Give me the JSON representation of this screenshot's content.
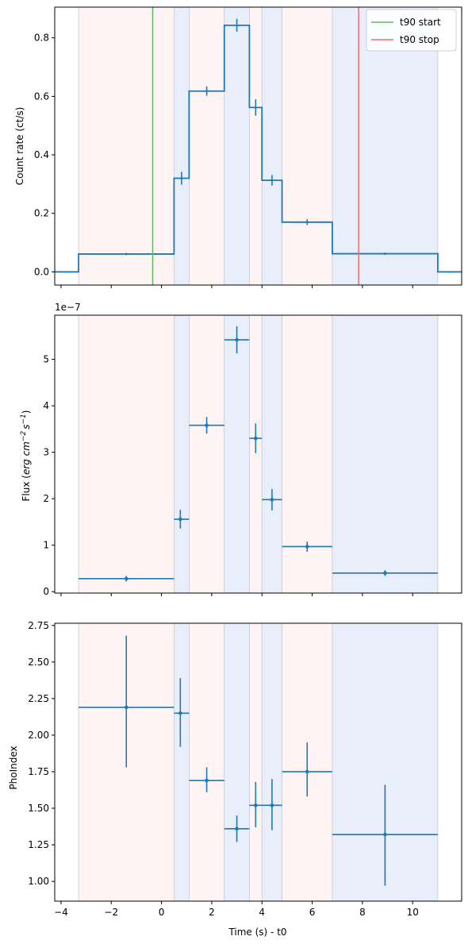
{
  "chart_data": [
    {
      "type": "line",
      "ylabel": "Count rate (ct/s)",
      "xlim": [
        -4.25,
        11.95
      ],
      "ylim": [
        -0.045,
        0.905
      ],
      "yticks": [
        0.0,
        0.2,
        0.4,
        0.6,
        0.8
      ],
      "ytick_labels": [
        "0.0",
        "0.2",
        "0.4",
        "0.6",
        "0.8"
      ],
      "xticks": [
        -4,
        -2,
        0,
        2,
        4,
        6,
        8,
        10
      ],
      "show_xtick_labels": false,
      "step": {
        "edges": [
          -4.25,
          -3.3,
          0.5,
          1.1,
          2.5,
          3.5,
          4.0,
          4.8,
          6.8,
          11.0,
          11.95
        ],
        "values": [
          0.0,
          0.061,
          0.32,
          0.618,
          0.843,
          0.562,
          0.313,
          0.17,
          0.062,
          0.0
        ]
      },
      "points": [
        {
          "x": -1.4,
          "y": 0.061,
          "xerr": 0.1,
          "yerr": 0.004
        },
        {
          "x": 0.8,
          "y": 0.32,
          "xerr": 0.1,
          "yerr": 0.022
        },
        {
          "x": 1.8,
          "y": 0.618,
          "xerr": 0.1,
          "yerr": 0.016
        },
        {
          "x": 3.0,
          "y": 0.843,
          "xerr": 0.1,
          "yerr": 0.022
        },
        {
          "x": 3.75,
          "y": 0.562,
          "xerr": 0.1,
          "yerr": 0.028
        },
        {
          "x": 4.4,
          "y": 0.313,
          "xerr": 0.1,
          "yerr": 0.018
        },
        {
          "x": 5.8,
          "y": 0.17,
          "xerr": 0.1,
          "yerr": 0.01
        },
        {
          "x": 8.9,
          "y": 0.062,
          "xerr": 0.1,
          "yerr": 0.004
        }
      ],
      "vlines": [
        {
          "x": -0.35,
          "name": "t90 start",
          "color": "#5cb85c"
        },
        {
          "x": 7.85,
          "name": "t90 stop",
          "color": "#f26b6b"
        }
      ],
      "legend": {
        "position": "top-right"
      }
    },
    {
      "type": "scatter",
      "ylabel": "Flux (erg cm−2 s−1)",
      "offset_text": "1e−7",
      "xlim": [
        -4.25,
        11.95
      ],
      "ylim": [
        -0.03,
        5.95
      ],
      "yticks": [
        0,
        1,
        2,
        3,
        4,
        5
      ],
      "ytick_labels": [
        "0",
        "1",
        "2",
        "3",
        "4",
        "5"
      ],
      "xticks": [
        -4,
        -2,
        0,
        2,
        4,
        6,
        8,
        10
      ],
      "show_xtick_labels": false,
      "points": [
        {
          "x": -1.4,
          "y": 0.28,
          "xlo": -3.3,
          "xhi": 0.5,
          "yerr": 0.06
        },
        {
          "x": 0.75,
          "y": 1.56,
          "xlo": 0.5,
          "xhi": 1.1,
          "yerr": 0.2
        },
        {
          "x": 1.8,
          "y": 3.58,
          "xlo": 1.1,
          "xhi": 2.5,
          "yerr": 0.18
        },
        {
          "x": 3.0,
          "y": 5.42,
          "xlo": 2.5,
          "xhi": 3.5,
          "yerr": 0.29
        },
        {
          "x": 3.75,
          "y": 3.3,
          "xlo": 3.5,
          "xhi": 4.0,
          "yerr": 0.32
        },
        {
          "x": 4.4,
          "y": 1.98,
          "xlo": 4.0,
          "xhi": 4.8,
          "yerr": 0.23
        },
        {
          "x": 5.8,
          "y": 0.97,
          "xlo": 4.8,
          "xhi": 6.8,
          "yerr": 0.11
        },
        {
          "x": 8.9,
          "y": 0.4,
          "xlo": 6.8,
          "xhi": 11.0,
          "yerr": 0.06
        }
      ]
    },
    {
      "type": "scatter",
      "ylabel": "PhoIndex",
      "xlabel": "Time (s) - t0",
      "xlim": [
        -4.25,
        11.95
      ],
      "ylim": [
        0.865,
        2.765
      ],
      "yticks": [
        1.0,
        1.25,
        1.5,
        1.75,
        2.0,
        2.25,
        2.5,
        2.75
      ],
      "ytick_labels": [
        "1.00",
        "1.25",
        "1.50",
        "1.75",
        "2.00",
        "2.25",
        "2.50",
        "2.75"
      ],
      "xticks": [
        -4,
        -2,
        0,
        2,
        4,
        6,
        8,
        10
      ],
      "xtick_labels": [
        "−4",
        "−2",
        "0",
        "2",
        "4",
        "6",
        "8",
        "10"
      ],
      "show_xtick_labels": true,
      "points": [
        {
          "x": -1.4,
          "y": 2.19,
          "xlo": -3.3,
          "xhi": 0.5,
          "ylo": 1.78,
          "yhi": 2.68
        },
        {
          "x": 0.75,
          "y": 2.15,
          "xlo": 0.5,
          "xhi": 1.1,
          "ylo": 1.92,
          "yhi": 2.39
        },
        {
          "x": 1.8,
          "y": 1.69,
          "xlo": 1.1,
          "xhi": 2.5,
          "ylo": 1.61,
          "yhi": 1.78
        },
        {
          "x": 3.0,
          "y": 1.36,
          "xlo": 2.5,
          "xhi": 3.5,
          "ylo": 1.27,
          "yhi": 1.45
        },
        {
          "x": 3.75,
          "y": 1.52,
          "xlo": 3.5,
          "xhi": 4.0,
          "ylo": 1.37,
          "yhi": 1.68
        },
        {
          "x": 4.4,
          "y": 1.52,
          "xlo": 4.0,
          "xhi": 4.8,
          "ylo": 1.35,
          "yhi": 1.7
        },
        {
          "x": 5.8,
          "y": 1.75,
          "xlo": 4.8,
          "xhi": 6.8,
          "ylo": 1.58,
          "yhi": 1.95
        },
        {
          "x": 8.9,
          "y": 1.32,
          "xlo": 6.8,
          "xhi": 11.0,
          "ylo": 0.97,
          "yhi": 1.66
        }
      ]
    }
  ],
  "bands": [
    {
      "x0": -3.3,
      "x1": 0.5,
      "kind": "pink"
    },
    {
      "x0": 0.5,
      "x1": 1.1,
      "kind": "blue"
    },
    {
      "x0": 1.1,
      "x1": 2.5,
      "kind": "pink"
    },
    {
      "x0": 2.5,
      "x1": 3.5,
      "kind": "blue"
    },
    {
      "x0": 3.5,
      "x1": 4.0,
      "kind": "pink"
    },
    {
      "x0": 4.0,
      "x1": 4.8,
      "kind": "blue"
    },
    {
      "x0": 4.8,
      "x1": 6.8,
      "kind": "pink"
    },
    {
      "x0": 6.8,
      "x1": 11.0,
      "kind": "blue"
    }
  ],
  "colors": {
    "series": "#1f77b4",
    "band_pink": "#fff4f4",
    "band_blue": "#e8effb",
    "band_edge": "#c8c8d8",
    "axis": "#000000"
  }
}
